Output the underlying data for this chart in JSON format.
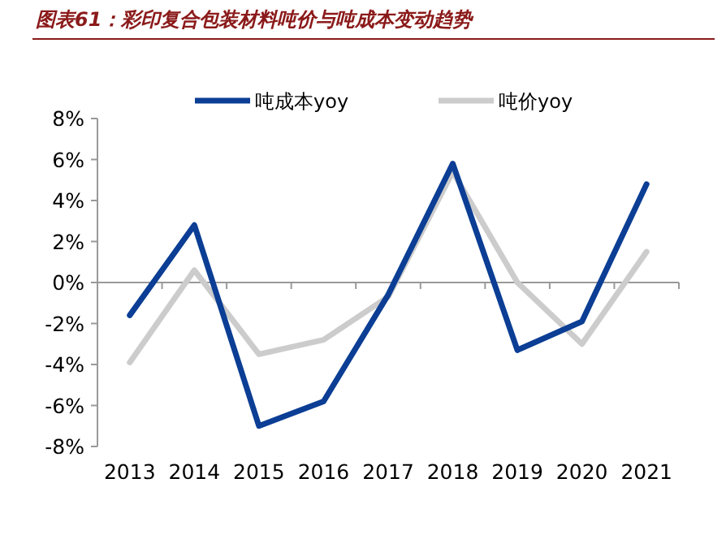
{
  "chart_data": {
    "type": "line",
    "title": "图表61：彩印复合包装材料吨价与吨成本变动趋势",
    "categories": [
      "2013",
      "2014",
      "2015",
      "2016",
      "2017",
      "2018",
      "2019",
      "2020",
      "2021"
    ],
    "series": [
      {
        "name": "吨成本yoy",
        "color": "#0b3e94",
        "values": [
          -1.6,
          2.8,
          -7.0,
          -5.8,
          -0.6,
          5.8,
          -3.3,
          -1.9,
          4.8
        ]
      },
      {
        "name": "吨价yoy",
        "color": "#cccccc",
        "values": [
          -3.9,
          0.6,
          -3.5,
          -2.8,
          -0.7,
          5.4,
          0.0,
          -3.0,
          1.5
        ]
      }
    ],
    "ylim": [
      -8,
      8
    ],
    "yticks": [
      {
        "value": -8,
        "label": "-8%"
      },
      {
        "value": -6,
        "label": "-6%"
      },
      {
        "value": -4,
        "label": "-4%"
      },
      {
        "value": -2,
        "label": "-2%"
      },
      {
        "value": 0,
        "label": "0%"
      },
      {
        "value": 2,
        "label": "2%"
      },
      {
        "value": 4,
        "label": "4%"
      },
      {
        "value": 6,
        "label": "6%"
      },
      {
        "value": 8,
        "label": "8%"
      }
    ],
    "legend": "top",
    "marker": "none",
    "line_style": "solid"
  }
}
